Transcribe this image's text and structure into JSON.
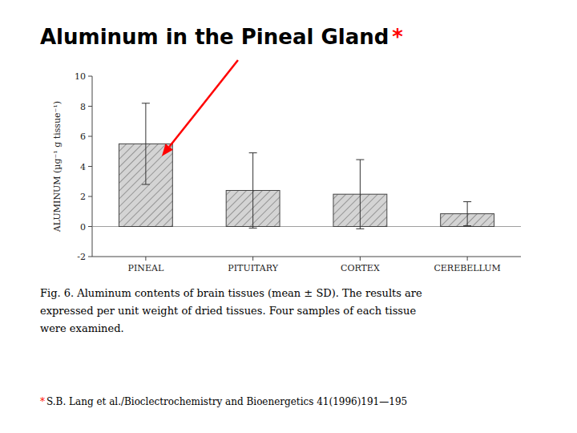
{
  "chart_data": {
    "type": "bar",
    "title": "Aluminum in the Pineal Gland",
    "title_mark": "*",
    "categories": [
      "PINEAL",
      "PITUITARY",
      "CORTEX",
      "CEREBELLUM"
    ],
    "values": [
      5.5,
      2.4,
      2.15,
      0.85
    ],
    "errors": [
      2.7,
      2.5,
      2.3,
      0.8
    ],
    "color": "#d4d4d4",
    "ylabel": "ALUMINUM (µg⁻¹ g tissue⁻¹)",
    "ylim": [
      -2,
      10
    ],
    "yticks": [
      -2,
      0,
      2,
      4,
      6,
      8,
      10
    ],
    "grid": false,
    "caption": [
      "Fig. 6. Aluminum contents of brain tissues (mean ± SD). The results are",
      "expressed per unit weight of dried tissues. Four samples of each tissue",
      "were examined."
    ],
    "footnote_mark": "*",
    "footnote": "S.B. Lang et al./Bioclectrochemistry and Bioenergetics 41(1996)191—195"
  }
}
